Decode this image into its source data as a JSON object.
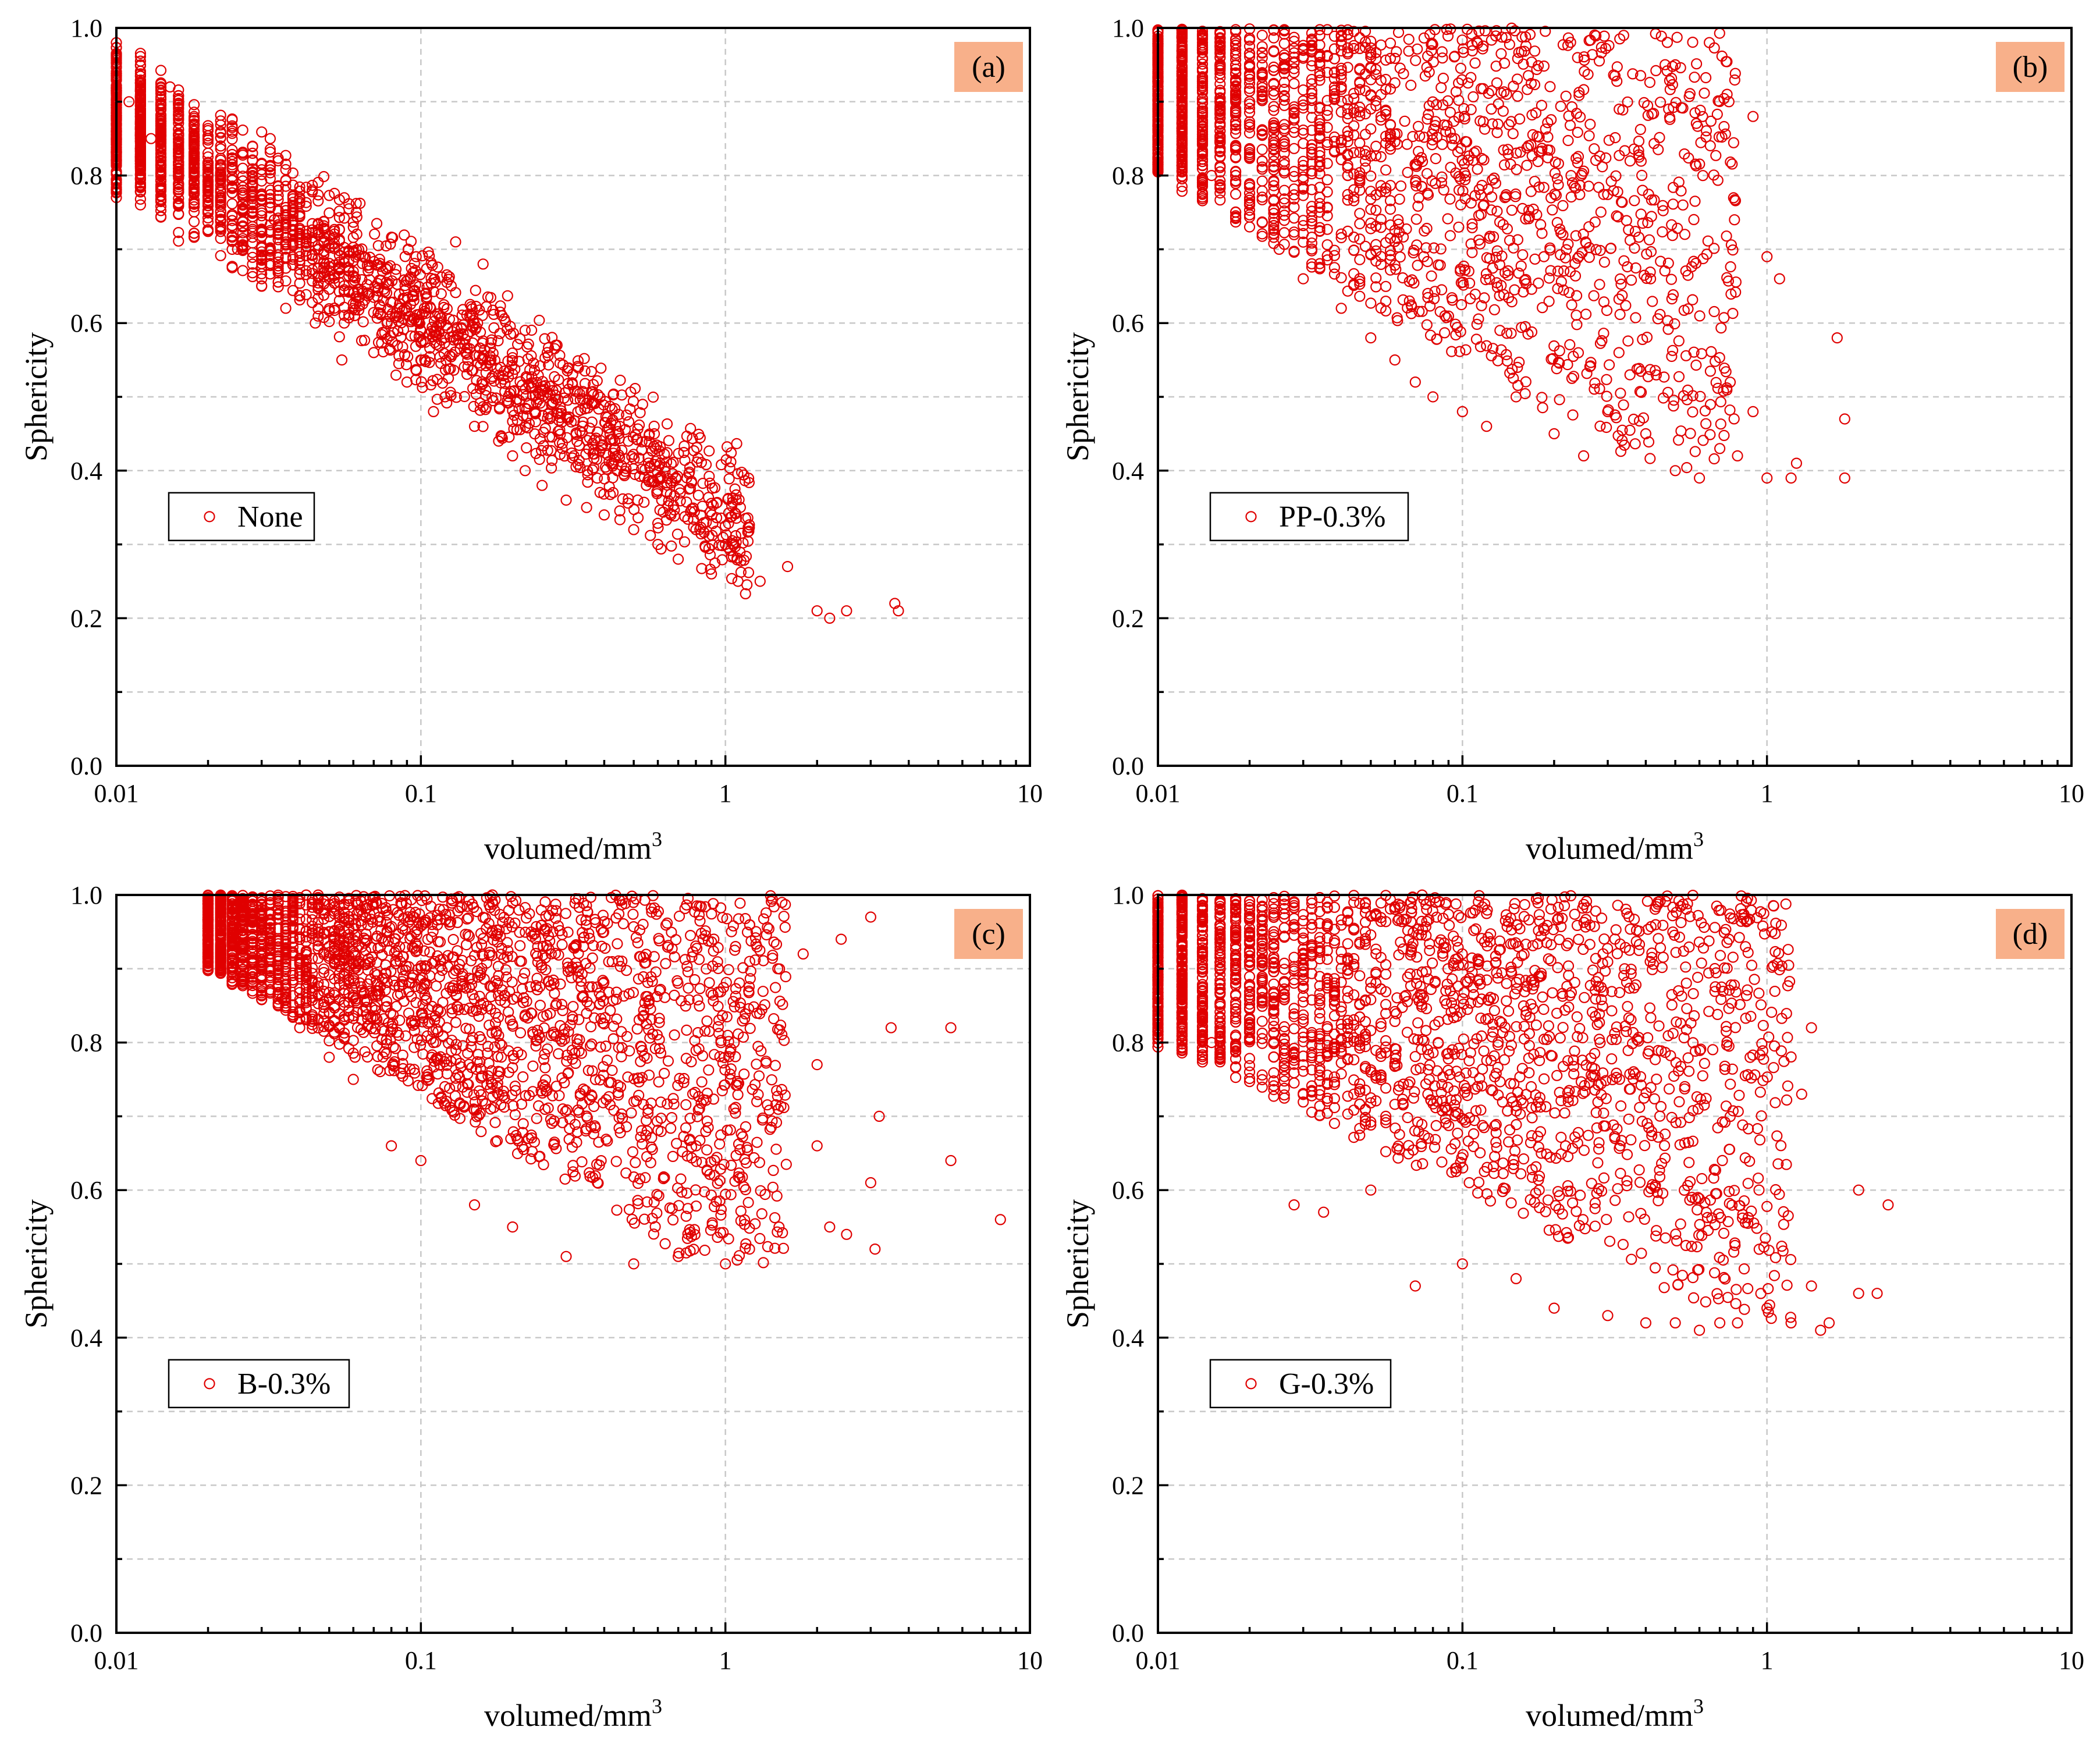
{
  "figure": {
    "marker_color": "#e00000",
    "tag_color": "#f8b08a",
    "grid_color": "#c8c8c8"
  },
  "chart_data": [
    {
      "panel": "a",
      "type": "scatter",
      "tag": "(a)",
      "legend": "None",
      "xlabel": "volumed/mm",
      "xlabel_sup": "3",
      "ylabel": "Sphericity",
      "xscale": "log",
      "xlim": [
        0.01,
        10
      ],
      "ylim": [
        0.0,
        1.0
      ],
      "xticks": [
        "0.01",
        "0.1",
        "1",
        "10"
      ],
      "yticks": [
        "0.0",
        "0.2",
        "0.4",
        "0.6",
        "0.8",
        "1.0"
      ],
      "legend_position": "lower-left",
      "tag_position": "top-right",
      "series": [
        {
          "name": "None",
          "points": [
            [
              0.01,
              0.82
            ],
            [
              0.011,
              0.9
            ],
            [
              0.012,
              0.95
            ],
            [
              0.013,
              0.85
            ],
            [
              0.014,
              0.78
            ],
            [
              0.015,
              0.92
            ],
            [
              0.016,
              0.8
            ],
            [
              0.018,
              0.88
            ],
            [
              0.02,
              0.75
            ],
            [
              0.022,
              0.84
            ],
            [
              0.025,
              0.7
            ],
            [
              0.028,
              0.8
            ],
            [
              0.03,
              0.66
            ],
            [
              0.033,
              0.74
            ],
            [
              0.036,
              0.62
            ],
            [
              0.04,
              0.72
            ],
            [
              0.045,
              0.6
            ],
            [
              0.05,
              0.66
            ],
            [
              0.055,
              0.55
            ],
            [
              0.06,
              0.62
            ],
            [
              0.07,
              0.56
            ],
            [
              0.08,
              0.6
            ],
            [
              0.09,
              0.52
            ],
            [
              0.1,
              0.55
            ],
            [
              0.11,
              0.48
            ],
            [
              0.12,
              0.5
            ],
            [
              0.13,
              0.71
            ],
            [
              0.15,
              0.46
            ],
            [
              0.16,
              0.68
            ],
            [
              0.18,
              0.44
            ],
            [
              0.2,
              0.42
            ],
            [
              0.22,
              0.4
            ],
            [
              0.25,
              0.38
            ],
            [
              0.26,
              0.56
            ],
            [
              0.28,
              0.57
            ],
            [
              0.3,
              0.36
            ],
            [
              0.35,
              0.35
            ],
            [
              0.4,
              0.34
            ],
            [
              0.45,
              0.46
            ],
            [
              0.48,
              0.44
            ],
            [
              0.5,
              0.32
            ],
            [
              0.55,
              0.38
            ],
            [
              0.6,
              0.3
            ],
            [
              0.7,
              0.28
            ],
            [
              0.8,
              0.32
            ],
            [
              0.9,
              0.26
            ],
            [
              1.0,
              0.3
            ],
            [
              1.1,
              0.25
            ],
            [
              1.3,
              0.25
            ],
            [
              1.6,
              0.27
            ],
            [
              2.0,
              0.21
            ],
            [
              2.2,
              0.2
            ],
            [
              2.5,
              0.21
            ],
            [
              3.6,
              0.22
            ],
            [
              3.7,
              0.21
            ]
          ],
          "trend": {
            "kind": "decay",
            "x_min": 0.01,
            "x_max": 1.2,
            "y_at_min": 0.86,
            "slope_per_decade": -0.27,
            "spread": 0.06,
            "count": 2200
          }
        }
      ]
    },
    {
      "panel": "b",
      "type": "scatter",
      "tag": "(b)",
      "legend": "PP-0.3%",
      "xlabel": "volumed/mm",
      "xlabel_sup": "3",
      "ylabel": "Sphericity",
      "xscale": "log",
      "xlim": [
        0.01,
        10
      ],
      "ylim": [
        0.0,
        1.0
      ],
      "xticks": [
        "0.01",
        "0.1",
        "1",
        "10"
      ],
      "yticks": [
        "0.0",
        "0.2",
        "0.4",
        "0.6",
        "0.8",
        "1.0"
      ],
      "legend_position": "lower-left",
      "tag_position": "top-right",
      "series": [
        {
          "name": "PP-0.3%",
          "points": [
            [
              0.01,
              0.85
            ],
            [
              0.012,
              0.92
            ],
            [
              0.015,
              0.8
            ],
            [
              0.02,
              0.76
            ],
            [
              0.025,
              0.7
            ],
            [
              0.03,
              0.66
            ],
            [
              0.04,
              0.62
            ],
            [
              0.05,
              0.58
            ],
            [
              0.06,
              0.55
            ],
            [
              0.07,
              0.52
            ],
            [
              0.08,
              0.5
            ],
            [
              0.1,
              0.48
            ],
            [
              0.12,
              0.46
            ],
            [
              0.15,
              0.5
            ],
            [
              0.2,
              0.45
            ],
            [
              0.25,
              0.42
            ],
            [
              0.3,
              0.48
            ],
            [
              0.4,
              0.45
            ],
            [
              0.5,
              0.4
            ],
            [
              0.6,
              0.39
            ],
            [
              0.7,
              0.43
            ],
            [
              0.8,
              0.42
            ],
            [
              0.9,
              0.48
            ],
            [
              1.0,
              0.39
            ],
            [
              1.1,
              0.66
            ],
            [
              1.2,
              0.39
            ],
            [
              1.25,
              0.41
            ],
            [
              1.7,
              0.58
            ],
            [
              1.8,
              0.47
            ],
            [
              1.8,
              0.39
            ],
            [
              0.75,
              0.9
            ],
            [
              0.9,
              0.88
            ],
            [
              0.5,
              0.95
            ],
            [
              1.0,
              0.69
            ]
          ],
          "trend": {
            "kind": "cloud",
            "x_min": 0.01,
            "x_max": 0.8,
            "y_top": 1.0,
            "y_floor_at_min": 0.8,
            "floor_slope_per_decade": -0.25,
            "floor_min": 0.4,
            "count": 2000
          }
        }
      ]
    },
    {
      "panel": "c",
      "type": "scatter",
      "tag": "(c)",
      "legend": "B-0.3%",
      "xlabel": "volumed/mm",
      "xlabel_sup": "3",
      "ylabel": "Sphericity",
      "xscale": "log",
      "xlim": [
        0.01,
        10
      ],
      "ylim": [
        0.0,
        1.0
      ],
      "xticks": [
        "0.01",
        "0.1",
        "1",
        "10"
      ],
      "yticks": [
        "0.0",
        "0.2",
        "0.4",
        "0.6",
        "0.8",
        "1.0"
      ],
      "legend_position": "lower-left",
      "tag_position": "top-right",
      "series": [
        {
          "name": "B-0.3%",
          "points": [
            [
              0.02,
              0.98
            ],
            [
              0.025,
              0.95
            ],
            [
              0.03,
              0.9
            ],
            [
              0.035,
              0.86
            ],
            [
              0.04,
              0.82
            ],
            [
              0.05,
              0.78
            ],
            [
              0.06,
              0.75
            ],
            [
              0.08,
              0.66
            ],
            [
              0.1,
              0.64
            ],
            [
              0.15,
              0.58
            ],
            [
              0.2,
              0.55
            ],
            [
              0.3,
              0.51
            ],
            [
              0.5,
              0.5
            ],
            [
              0.7,
              0.51
            ],
            [
              1.0,
              0.5
            ],
            [
              1.2,
              0.52
            ],
            [
              1.5,
              0.55
            ],
            [
              2.0,
              0.66
            ],
            [
              2.2,
              0.55
            ],
            [
              2.5,
              0.54
            ],
            [
              3.0,
              0.61
            ],
            [
              3.1,
              0.52
            ],
            [
              3.2,
              0.7
            ],
            [
              3.5,
              0.82
            ],
            [
              5.5,
              0.82
            ],
            [
              5.5,
              0.64
            ],
            [
              8.0,
              0.56
            ],
            [
              1.8,
              0.92
            ],
            [
              2.4,
              0.94
            ],
            [
              3.0,
              0.97
            ],
            [
              2.0,
              0.77
            ]
          ],
          "trend": {
            "kind": "cloud",
            "x_min": 0.02,
            "x_max": 1.6,
            "y_top": 1.0,
            "y_floor_at_min": 0.9,
            "floor_slope_per_decade": -0.25,
            "floor_min": 0.5,
            "count": 2600
          }
        }
      ]
    },
    {
      "panel": "d",
      "type": "scatter",
      "tag": "(d)",
      "legend": "G-0.3%",
      "xlabel": "volumed/mm",
      "xlabel_sup": "3",
      "ylabel": "Sphericity",
      "xscale": "log",
      "xlim": [
        0.01,
        10
      ],
      "ylim": [
        0.0,
        1.0
      ],
      "xticks": [
        "0.01",
        "0.1",
        "1",
        "10"
      ],
      "yticks": [
        "0.0",
        "0.2",
        "0.4",
        "0.6",
        "0.8",
        "1.0"
      ],
      "legend_position": "lower-left",
      "tag_position": "top-right",
      "series": [
        {
          "name": "G-0.3%",
          "points": [
            [
              0.01,
              0.86
            ],
            [
              0.012,
              0.92
            ],
            [
              0.015,
              0.8
            ],
            [
              0.02,
              0.76
            ],
            [
              0.028,
              0.58
            ],
            [
              0.035,
              0.57
            ],
            [
              0.05,
              0.6
            ],
            [
              0.07,
              0.47
            ],
            [
              0.1,
              0.5
            ],
            [
              0.15,
              0.48
            ],
            [
              0.2,
              0.44
            ],
            [
              0.3,
              0.43
            ],
            [
              0.4,
              0.42
            ],
            [
              0.5,
              0.42
            ],
            [
              0.6,
              0.41
            ],
            [
              0.7,
              0.42
            ],
            [
              0.8,
              0.42
            ],
            [
              1.0,
              0.44
            ],
            [
              1.2,
              0.42
            ],
            [
              1.4,
              0.47
            ],
            [
              1.5,
              0.41
            ],
            [
              1.6,
              0.42
            ],
            [
              2.0,
              0.46
            ],
            [
              2.0,
              0.6
            ],
            [
              2.3,
              0.46
            ],
            [
              2.5,
              0.58
            ],
            [
              1.4,
              0.82
            ],
            [
              1.3,
              0.73
            ],
            [
              0.85,
              0.93
            ],
            [
              0.75,
              0.94
            ]
          ],
          "trend": {
            "kind": "cloud",
            "x_min": 0.01,
            "x_max": 1.2,
            "y_top": 1.0,
            "y_floor_at_min": 0.8,
            "floor_slope_per_decade": -0.2,
            "floor_min": 0.41,
            "count": 2300
          }
        }
      ]
    }
  ]
}
